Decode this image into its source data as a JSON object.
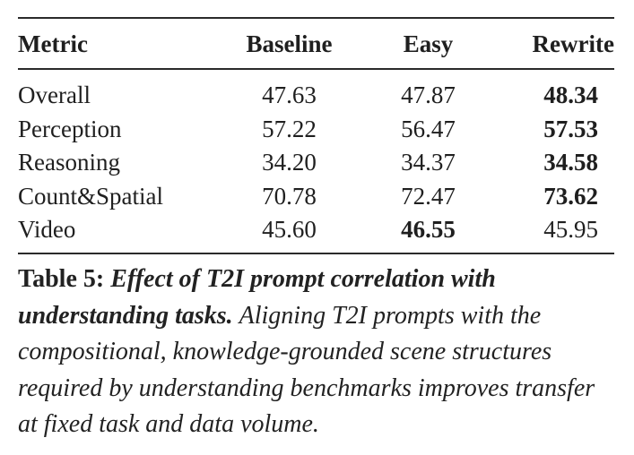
{
  "table": {
    "headers": [
      "Metric",
      "Baseline",
      "Easy",
      "Rewrite"
    ],
    "rows": [
      {
        "metric": "Overall",
        "baseline": "47.63",
        "easy": "47.87",
        "rewrite": "48.34",
        "best": "rewrite"
      },
      {
        "metric": "Perception",
        "baseline": "57.22",
        "easy": "56.47",
        "rewrite": "57.53",
        "best": "rewrite"
      },
      {
        "metric": "Reasoning",
        "baseline": "34.20",
        "easy": "34.37",
        "rewrite": "34.58",
        "best": "rewrite"
      },
      {
        "metric": "Count&Spatial",
        "baseline": "70.78",
        "easy": "72.47",
        "rewrite": "73.62",
        "best": "rewrite"
      },
      {
        "metric": "Video",
        "baseline": "45.60",
        "easy": "46.55",
        "rewrite": "45.95",
        "best": "easy"
      }
    ]
  },
  "caption": {
    "label": "Table 5:",
    "title": "Effect of T2I prompt correlation with understanding tasks.",
    "body": "Aligning T2I prompts with the compositional, knowledge-grounded scene structures required by understanding benchmarks improves transfer at fixed task and data volume."
  }
}
